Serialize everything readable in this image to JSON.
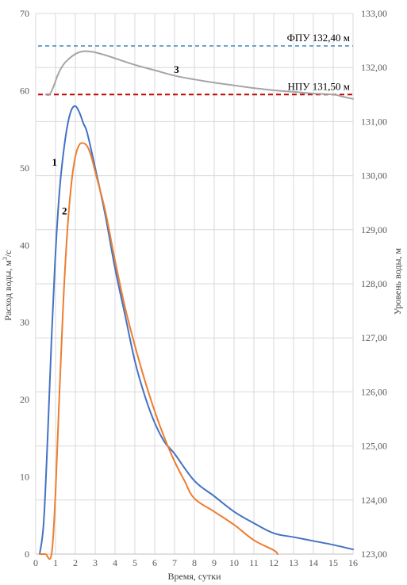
{
  "chart_data": {
    "type": "line",
    "xlabel": "Время, сутки",
    "ylabel_left": "Расход воды, м",
    "ylabel_left_sup": "3",
    "ylabel_left_suffix": "/с",
    "ylabel_right": "Уровень воды, м",
    "xlim": [
      0,
      16
    ],
    "ylim_left": [
      0,
      70
    ],
    "ylim_right": [
      123.0,
      133.0
    ],
    "x_ticks": [
      "0",
      "1",
      "2",
      "3",
      "4",
      "5",
      "6",
      "7",
      "8",
      "9",
      "10",
      "11",
      "12",
      "13",
      "14",
      "15",
      "16"
    ],
    "y_left_ticks": [
      "0",
      "10",
      "20",
      "30",
      "40",
      "50",
      "60",
      "70"
    ],
    "y_right_ticks": [
      "123,00",
      "124,00",
      "125,00",
      "126,00",
      "127,00",
      "128,00",
      "129,00",
      "130,00",
      "131,00",
      "132,00",
      "133,00"
    ],
    "grid": true,
    "series": [
      {
        "name": "1",
        "axis": "left",
        "color": "#4472C4",
        "x": [
          0.2,
          0.4,
          0.6,
          0.8,
          1.0,
          1.2,
          1.4,
          1.6,
          1.8,
          2.0,
          2.2,
          2.4,
          2.6,
          3.0,
          3.5,
          4.0,
          4.5,
          5.0,
          5.5,
          6.0,
          6.5,
          7.0,
          8.0,
          9.0,
          10.0,
          11.0,
          12.0,
          13.0,
          14.0,
          15.0,
          16.0
        ],
        "y": [
          0,
          4,
          15,
          28,
          39,
          47,
          52,
          55.5,
          57.5,
          58,
          57.2,
          55.8,
          54.5,
          50,
          44,
          37,
          31,
          25,
          20.5,
          17,
          14.5,
          13,
          9.5,
          7.5,
          5.5,
          4,
          2.7,
          2.2,
          1.7,
          1.2,
          0.6
        ]
      },
      {
        "name": "2",
        "axis": "left",
        "color": "#ED7D31",
        "x": [
          0.2,
          0.3,
          0.5,
          0.8,
          1.0,
          1.2,
          1.4,
          1.6,
          1.8,
          2.0,
          2.2,
          2.4,
          2.6,
          2.8,
          3.0,
          3.5,
          4.0,
          4.5,
          5.0,
          5.5,
          6.0,
          6.5,
          7.0,
          7.5,
          8.0,
          9.0,
          10.0,
          11.0,
          12.0,
          12.2
        ],
        "y": [
          0,
          0,
          0,
          0,
          8,
          21,
          33,
          42,
          48,
          51.5,
          53,
          53.2,
          52.8,
          51.5,
          49.5,
          44.5,
          38,
          32,
          27,
          22.5,
          18.5,
          15,
          12,
          9.5,
          7.2,
          5.5,
          3.8,
          1.8,
          0.5,
          0
        ]
      },
      {
        "name": "3",
        "axis": "right",
        "color": "#A5A5A5",
        "x": [
          0.5,
          0.7,
          0.9,
          1.1,
          1.3,
          1.5,
          1.8,
          2.1,
          2.4,
          2.6,
          3.0,
          3.5,
          4.0,
          5.0,
          6.0,
          7.0,
          8.0,
          9.0,
          10.0,
          11.0,
          12.0,
          13.0,
          14.0,
          15.0,
          15.5,
          16.0
        ],
        "y": [
          131.5,
          131.5,
          131.65,
          131.85,
          132.0,
          132.1,
          132.2,
          132.27,
          132.3,
          132.3,
          132.28,
          132.23,
          132.17,
          132.05,
          131.95,
          131.85,
          131.78,
          131.72,
          131.67,
          131.62,
          131.58,
          131.55,
          131.52,
          131.5,
          131.46,
          131.42
        ]
      }
    ],
    "reference_lines": [
      {
        "label": "ФПУ 132,40 м",
        "axis": "right",
        "value": 132.4,
        "color": "#4A90C4",
        "style": "dashed"
      },
      {
        "label": "НПУ 131,50 м",
        "axis": "right",
        "value": 131.5,
        "color": "#C00000",
        "style": "dashed"
      }
    ],
    "annotations": [
      {
        "text": "1",
        "x": 0.95,
        "y_left": 50.3
      },
      {
        "text": "2",
        "x": 1.45,
        "y_left": 44.0
      },
      {
        "text": "3",
        "x": 7.1,
        "y_right": 131.9
      }
    ]
  }
}
